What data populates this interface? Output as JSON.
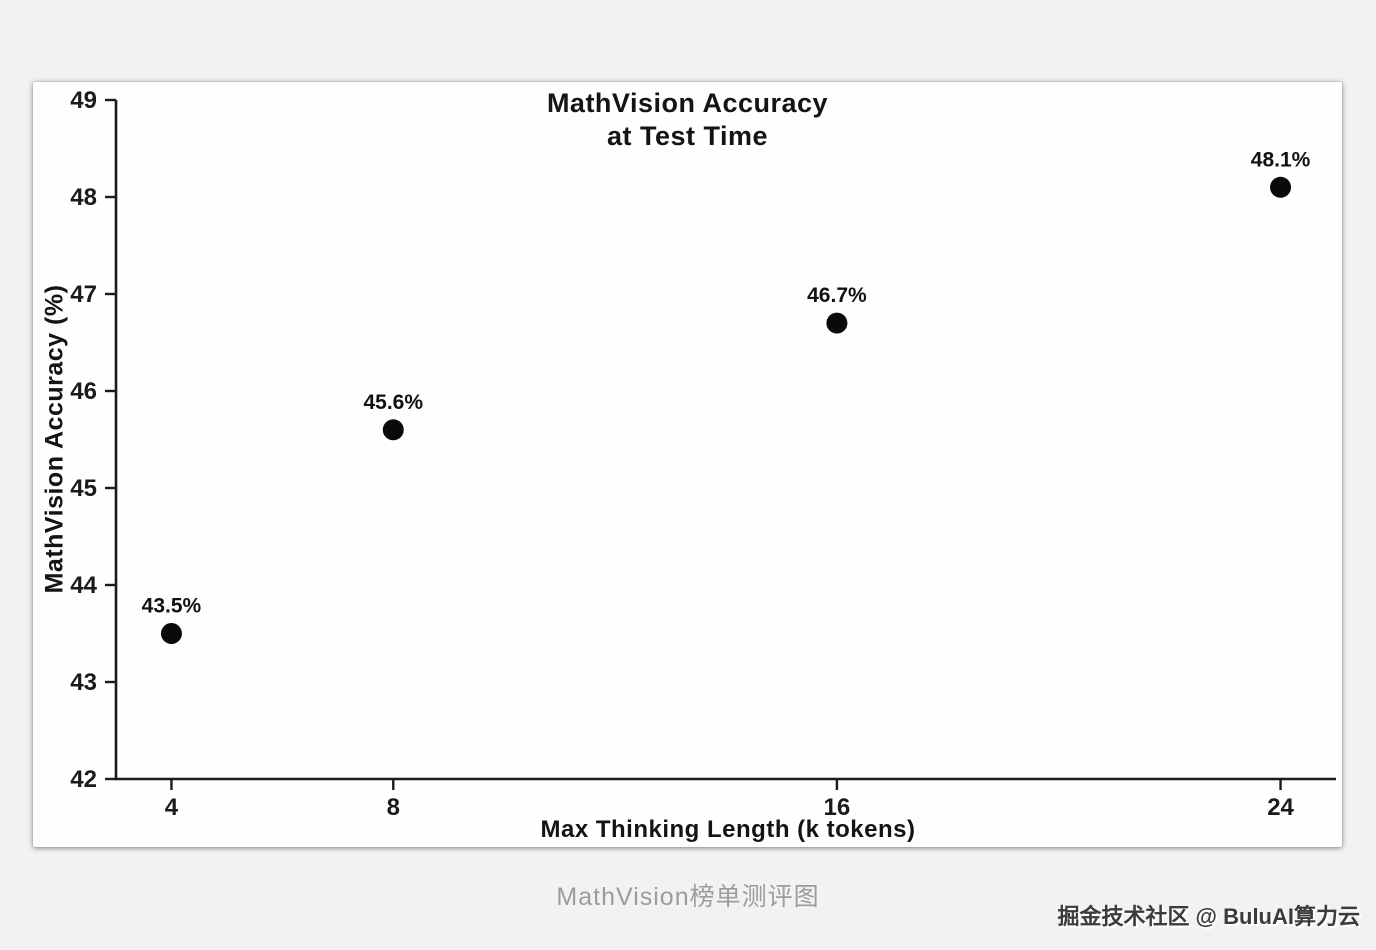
{
  "page": {
    "caption": "MathVision榜单测评图",
    "watermark": "掘金技术社区 @ BuluAI算力云"
  },
  "chart_data": {
    "type": "scatter",
    "title": "MathVision Accuracy at Test Time",
    "title_lines": [
      "MathVision Accuracy",
      "at Test Time"
    ],
    "xlabel": "Max Thinking Length (k tokens)",
    "ylabel": "MathVision Accuracy (%)",
    "x": [
      4,
      8,
      16,
      24
    ],
    "y": [
      43.5,
      45.6,
      46.7,
      48.1
    ],
    "point_labels": [
      "43.5%",
      "45.6%",
      "46.7%",
      "48.1%"
    ],
    "x_ticks": [
      "4",
      "8",
      "16",
      "24"
    ],
    "x_tick_values": [
      4,
      8,
      16,
      24
    ],
    "y_ticks": [
      "42",
      "43",
      "44",
      "45",
      "46",
      "47",
      "48",
      "49"
    ],
    "y_tick_values": [
      42,
      43,
      44,
      45,
      46,
      47,
      48,
      49
    ],
    "xlim": [
      3.0,
      25.0
    ],
    "ylim": [
      42,
      49
    ],
    "grid": false,
    "legend": "none",
    "marker_color": "#0a0a0a",
    "axis_color": "#1a1a1a",
    "background": "#fefefe"
  },
  "colors": {
    "page_bg": "#f2f2f2",
    "card_bg": "#fefefe",
    "caption_text": "#9c9c9c",
    "watermark_text": "#3b3b3b"
  }
}
